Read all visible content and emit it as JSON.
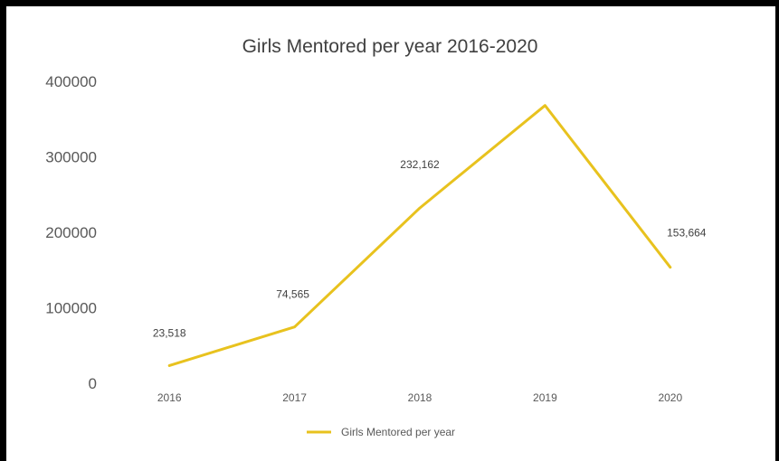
{
  "chart_data": {
    "type": "line",
    "title": "Girls Mentored per year 2016-2020",
    "xlabel": "",
    "ylabel": "",
    "categories": [
      "2016",
      "2017",
      "2018",
      "2019",
      "2020"
    ],
    "series": [
      {
        "name": "Girls Mentored per year",
        "values": [
          23518,
          74565,
          232162,
          368000,
          153664
        ],
        "data_labels": [
          "23,518",
          "74,565",
          "232,162",
          "",
          "153,664"
        ],
        "color": "#E8C21E"
      }
    ],
    "yticks": [
      "0",
      "100000",
      "200000",
      "300000",
      "400000"
    ],
    "ylim": [
      0,
      400000
    ],
    "grid": false,
    "legend": "bottom"
  }
}
